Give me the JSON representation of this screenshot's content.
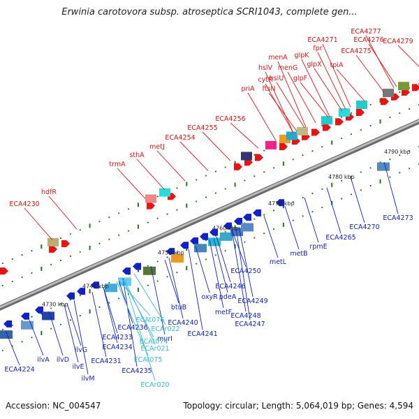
{
  "header": {
    "title": "Erwinia carotovora subsp. atroseptica SCRI1043, complete gen..."
  },
  "footer": {
    "accession": "Accession: NC_004547",
    "topology": "Topology: circular; Length: 5,064,019 bp; Genes: 4,594"
  },
  "colors": {
    "forward_gene": "#ee1111",
    "reverse_gene": "#1122cc",
    "rna_gene": "#33bbdd",
    "backbone": "#8a8a8a",
    "dots": "#1f7a1f"
  },
  "ticks": [
    {
      "label": "4730 kbp"
    },
    {
      "label": "4740 kbp"
    },
    {
      "label": "4750 kbp"
    },
    {
      "label": "4760 kbp"
    },
    {
      "label": "4770 kbp"
    },
    {
      "label": "4780 kbp"
    },
    {
      "label": "4790 kbp"
    }
  ],
  "forward_labels": [
    "ECA4230",
    "hdfR",
    "trmA",
    "sthA",
    "metJ",
    "ECA4254",
    "ECA4255",
    "ECA4256",
    "priA",
    "cytR",
    "ftsN",
    "hslV",
    "hslU",
    "menA",
    "menG",
    "glpF",
    "glpK",
    "glpX",
    "fpr",
    "ECA4271",
    "tpiA",
    "ECA4275",
    "ECA4276",
    "ECA4277",
    "ECA4279"
  ],
  "reverse_labels": [
    "ECA4224",
    "ilvA",
    "ilvD",
    "ilvE",
    "ilvM",
    "ilvG",
    "ECA4231",
    "ECA4233",
    "ECA4234",
    "ECA4235",
    "ECA4236",
    "murI",
    "btuB",
    "ECA4240",
    "ECA4241",
    "oxyR",
    "metF",
    "pdeA",
    "ECA4246",
    "ECA4247",
    "ECA4248",
    "ECA4249",
    "ECA4250",
    "metL",
    "metB",
    "rpmE",
    "ECA4265",
    "ECA4270",
    "ECA4273"
  ],
  "rna_labels": [
    "ECAt074",
    "ECAt075",
    "ECAt076",
    "ECAr020",
    "ECAr021",
    "ECAr022"
  ]
}
